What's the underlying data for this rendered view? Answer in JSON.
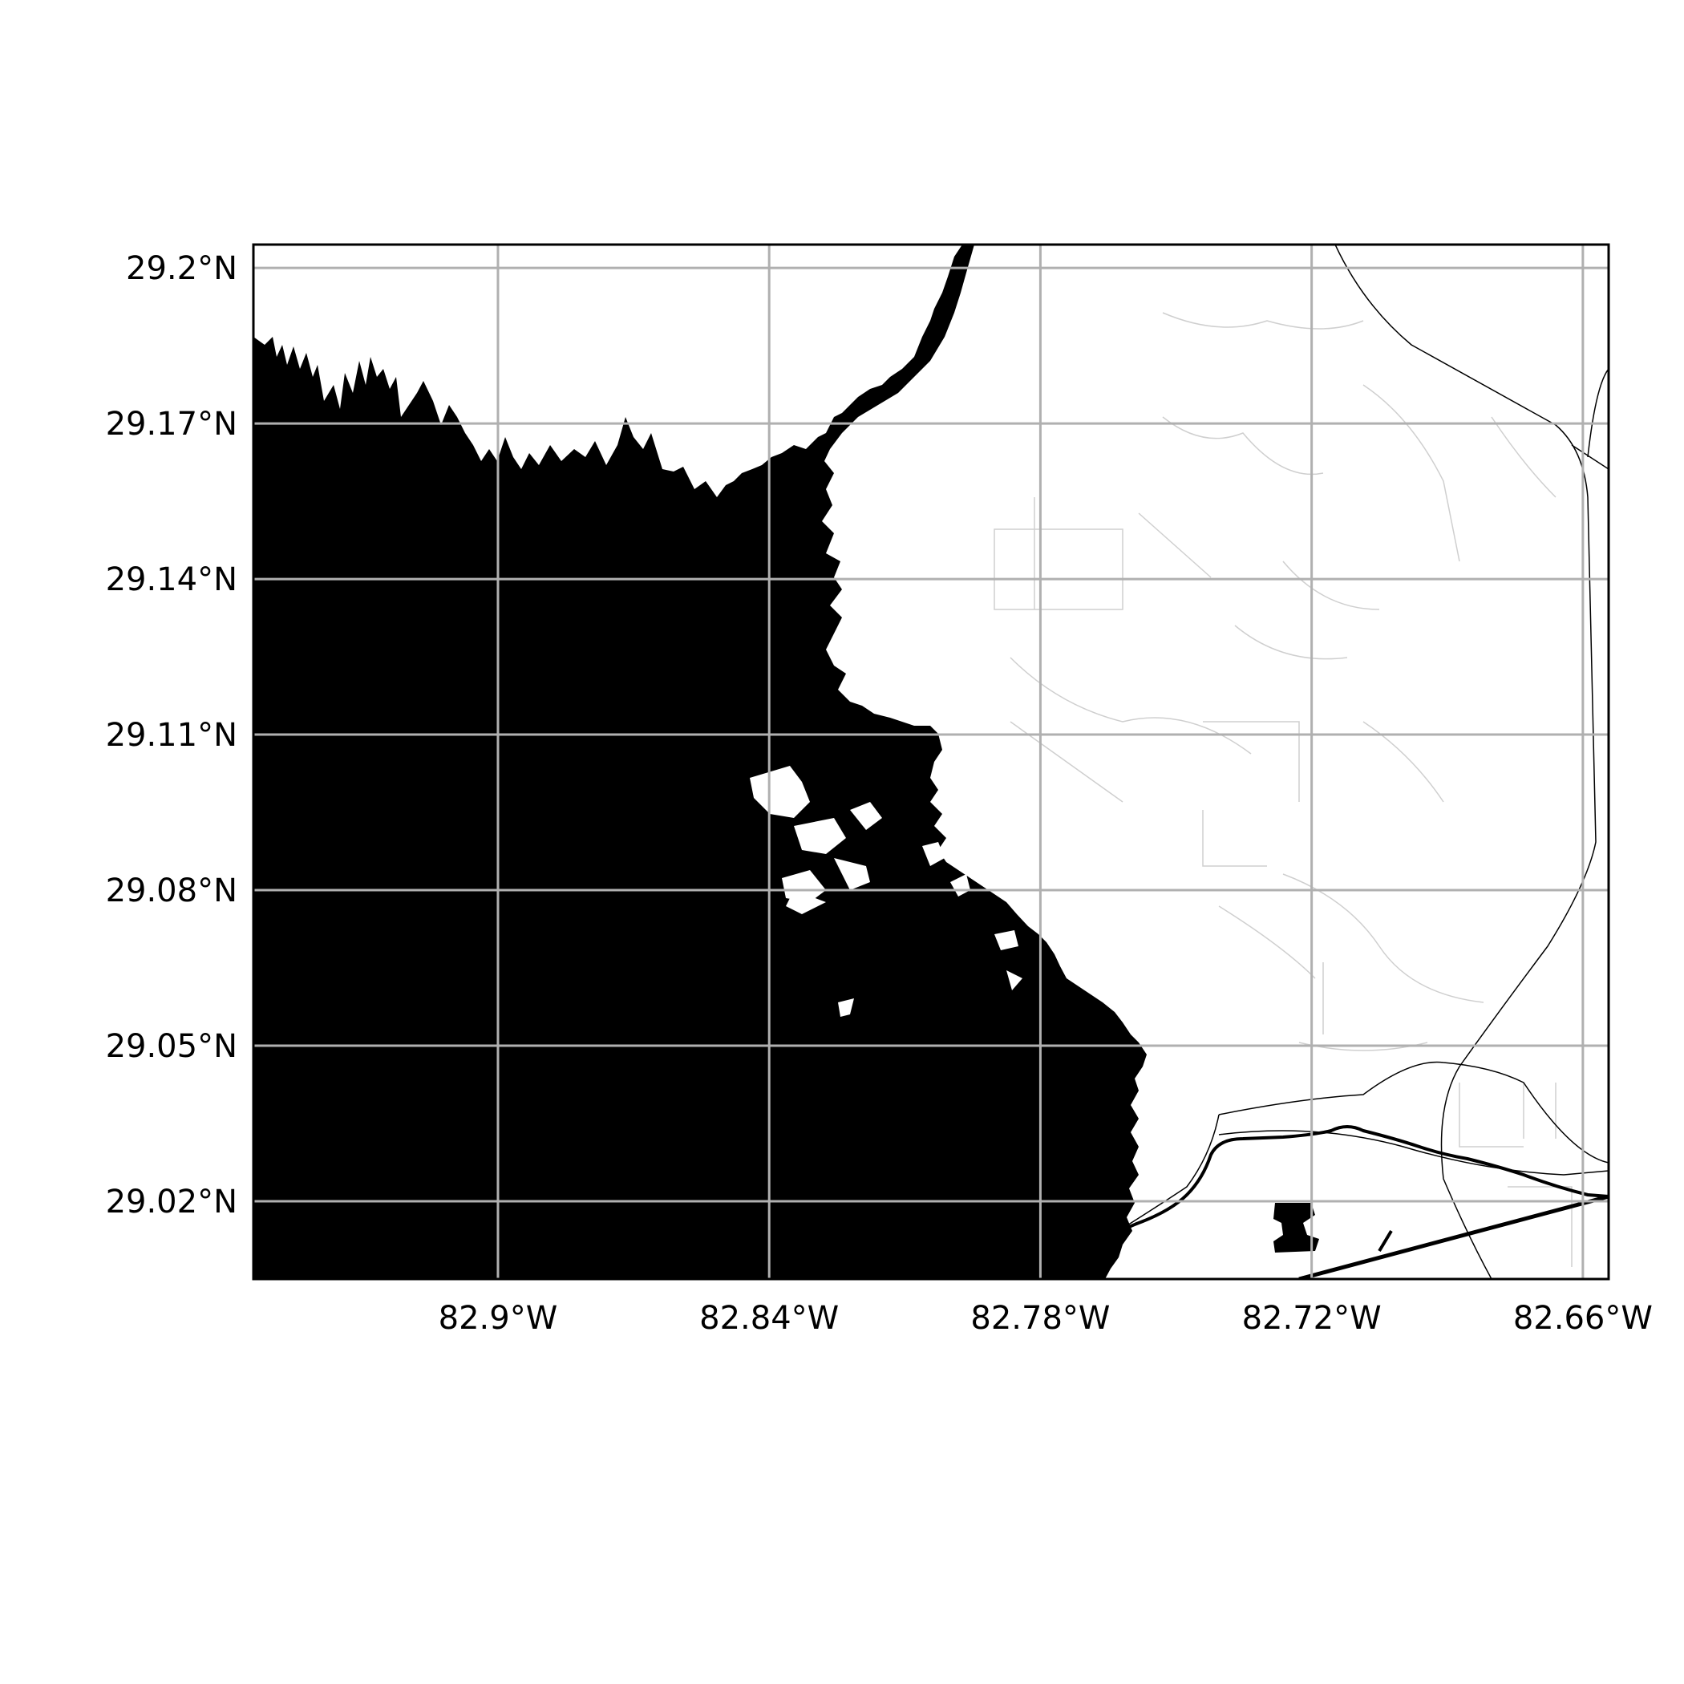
{
  "map": {
    "extent": {
      "lon_min": -82.9541,
      "lon_max": -82.6543,
      "lat_min": 29.005,
      "lat_max": 29.2045
    },
    "colors": {
      "water": "#000000",
      "land": "#ffffff",
      "grid": "#b0b0b0",
      "roads": "#000000",
      "minor_roads": "#cfcfcf",
      "frame": "#000000"
    },
    "grid": true,
    "x_ticks": [
      {
        "value": -82.9,
        "label": "82.9°W"
      },
      {
        "value": -82.84,
        "label": "82.84°W"
      },
      {
        "value": -82.78,
        "label": "82.78°W"
      },
      {
        "value": -82.72,
        "label": "82.72°W"
      },
      {
        "value": -82.66,
        "label": "82.66°W"
      }
    ],
    "y_ticks": [
      {
        "value": 29.2,
        "label": "29.2°N"
      },
      {
        "value": 29.17,
        "label": "29.17°N"
      },
      {
        "value": 29.14,
        "label": "29.14°N"
      },
      {
        "value": 29.11,
        "label": "29.11°N"
      },
      {
        "value": 29.08,
        "label": "29.08°N"
      },
      {
        "value": 29.05,
        "label": "29.05°N"
      },
      {
        "value": 29.02,
        "label": "29.02°N"
      }
    ]
  }
}
